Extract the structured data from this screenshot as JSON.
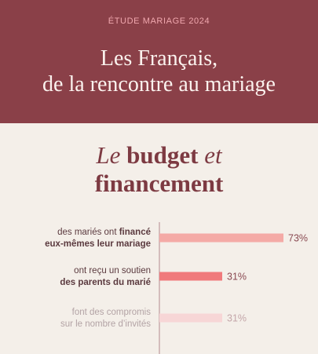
{
  "header": {
    "kicker": "ÉTUDE MARIAGE 2024",
    "title_line1": "Les Français,",
    "title_line2": "de la rencontre au mariage"
  },
  "section": {
    "title_word1": "Le",
    "title_word2": "budget",
    "title_word3": "et",
    "title_word4": "financement"
  },
  "colors": {
    "banner": "#8a4048",
    "page": "#f4efe9",
    "accent_text": "#7d3a42",
    "axis": "#b58a8f"
  },
  "chart_data": {
    "type": "bar",
    "orientation": "horizontal",
    "ylim": [
      0,
      100
    ],
    "unit": "%",
    "items": [
      {
        "label_plain": "des mariés ont",
        "label_bold": "financé",
        "label_line2": "eux-mêmes leur mariage",
        "label_line2_bold": true,
        "value": 73,
        "value_label": "73%",
        "color": "#f4aaa6",
        "faded": false
      },
      {
        "label_plain": "ont reçu un soutien",
        "label_bold": "",
        "label_line2": "des parents du marié",
        "label_line2_bold": true,
        "value": 31,
        "value_label": "31%",
        "color": "#f07a7c",
        "faded": false
      },
      {
        "label_plain": "font des compromis",
        "label_bold": "",
        "label_line2": "sur le nombre d’invités",
        "label_line2_bold": false,
        "value": 31,
        "value_label": "31%",
        "color": "#f7d6d6",
        "faded": true
      }
    ]
  }
}
